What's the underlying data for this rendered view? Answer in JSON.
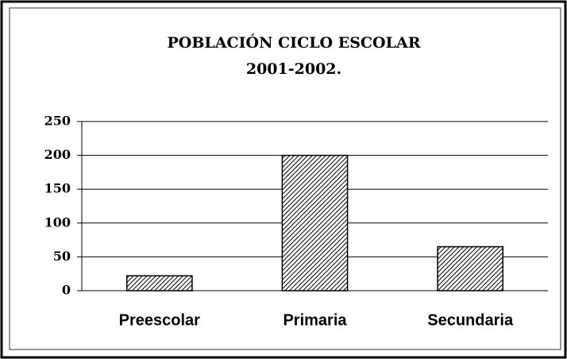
{
  "chart_data": {
    "type": "bar",
    "title": "POBLACIÓN CICLO ESCOLAR",
    "subtitle": "2001-2002.",
    "categories": [
      "Preescolar",
      "Primaria",
      "Secundaria"
    ],
    "values": [
      22,
      200,
      65
    ],
    "color": "#000000",
    "ylim": [
      0,
      250
    ],
    "yticks": [
      0,
      50,
      100,
      150,
      200,
      250
    ],
    "grid": true
  }
}
